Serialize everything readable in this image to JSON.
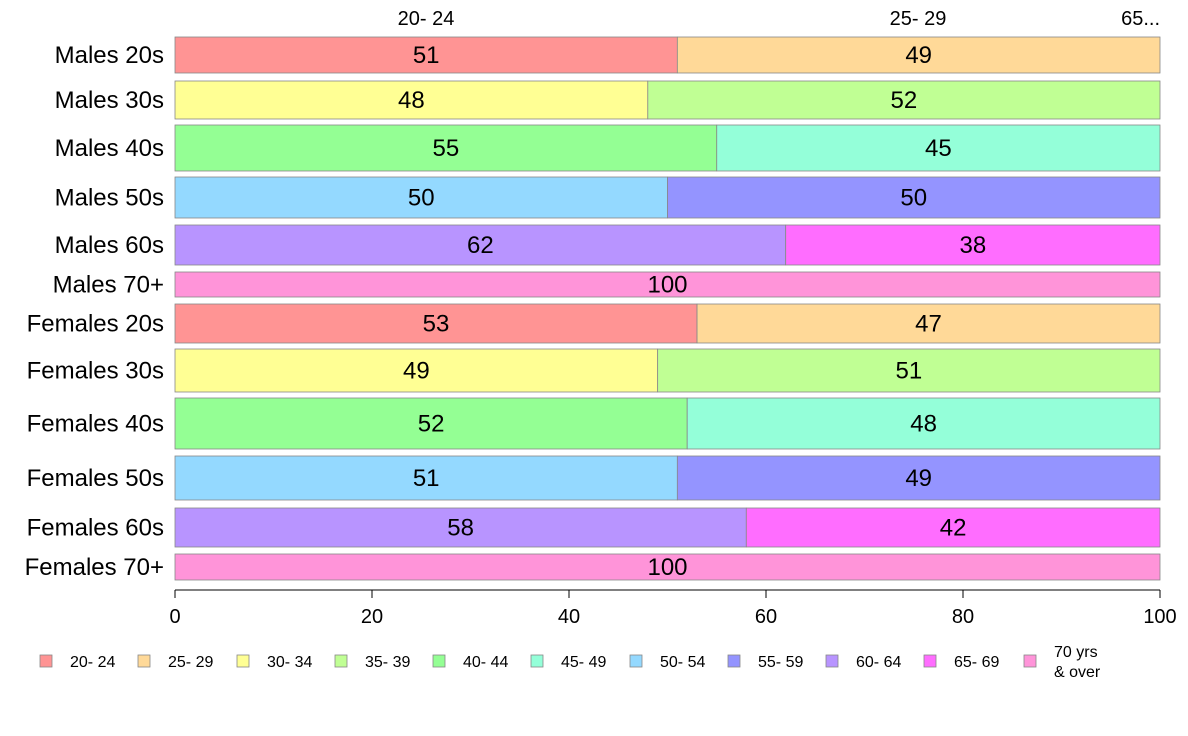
{
  "chart_data": {
    "type": "bar",
    "orientation": "horizontal",
    "stacked": true,
    "xlim": [
      0,
      100
    ],
    "x_ticks": [
      0,
      20,
      40,
      60,
      80,
      100
    ],
    "top_labels": [
      "20- 24",
      "25- 29",
      "65..."
    ],
    "legend_position": "bottom",
    "legend": [
      {
        "label": "20- 24",
        "color": "#ff9494"
      },
      {
        "label": "25- 29",
        "color": "#ffd998"
      },
      {
        "label": "30- 34",
        "color": "#ffff94"
      },
      {
        "label": "35- 39",
        "color": "#c0ff94"
      },
      {
        "label": "40- 44",
        "color": "#94ff94"
      },
      {
        "label": "45- 49",
        "color": "#94ffd9"
      },
      {
        "label": "50- 54",
        "color": "#94d9ff"
      },
      {
        "label": "55- 59",
        "color": "#9494ff"
      },
      {
        "label": "60- 64",
        "color": "#b894ff"
      },
      {
        "label": "65- 69",
        "color": "#ff6dff"
      },
      {
        "label": "70 yrs\n& over",
        "color": "#ff94d9"
      }
    ],
    "rows": [
      {
        "label": "Males 20s",
        "segments": [
          {
            "group": 0,
            "value": 51
          },
          {
            "group": 1,
            "value": 49
          }
        ]
      },
      {
        "label": "Males 30s",
        "segments": [
          {
            "group": 2,
            "value": 48
          },
          {
            "group": 3,
            "value": 52
          }
        ]
      },
      {
        "label": "Males 40s",
        "segments": [
          {
            "group": 4,
            "value": 55
          },
          {
            "group": 5,
            "value": 45
          }
        ]
      },
      {
        "label": "Males 50s",
        "segments": [
          {
            "group": 6,
            "value": 50
          },
          {
            "group": 7,
            "value": 50
          }
        ]
      },
      {
        "label": "Males 60s",
        "segments": [
          {
            "group": 8,
            "value": 62
          },
          {
            "group": 9,
            "value": 38
          }
        ]
      },
      {
        "label": "Males 70+",
        "segments": [
          {
            "group": 10,
            "value": 100
          }
        ]
      },
      {
        "label": "Females 20s",
        "segments": [
          {
            "group": 0,
            "value": 53
          },
          {
            "group": 1,
            "value": 47
          }
        ]
      },
      {
        "label": "Females 30s",
        "segments": [
          {
            "group": 2,
            "value": 49
          },
          {
            "group": 3,
            "value": 51
          }
        ]
      },
      {
        "label": "Females 40s",
        "segments": [
          {
            "group": 4,
            "value": 52
          },
          {
            "group": 5,
            "value": 48
          }
        ]
      },
      {
        "label": "Females 50s",
        "segments": [
          {
            "group": 6,
            "value": 51
          },
          {
            "group": 7,
            "value": 49
          }
        ]
      },
      {
        "label": "Females 60s",
        "segments": [
          {
            "group": 8,
            "value": 58
          },
          {
            "group": 9,
            "value": 42
          }
        ]
      },
      {
        "label": "Females 70+",
        "segments": [
          {
            "group": 10,
            "value": 100
          }
        ]
      }
    ]
  }
}
